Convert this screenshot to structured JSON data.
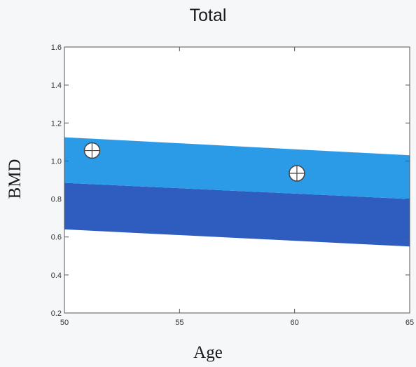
{
  "chart_data": {
    "type": "area",
    "title": "Total",
    "xlabel": "Age",
    "ylabel": "BMD",
    "xlim": [
      50,
      65
    ],
    "ylim": [
      0.2,
      1.6
    ],
    "xticks": [
      50,
      55,
      60,
      65
    ],
    "yticks": [
      0.2,
      0.4,
      0.6,
      0.8,
      1.0,
      1.2,
      1.4,
      1.6
    ],
    "xtick_labels": [
      "50",
      "55",
      "60",
      "65"
    ],
    "ytick_labels": [
      "0.2",
      "0.4",
      "0.6",
      "0.8",
      "1.0",
      "1.2",
      "1.4",
      "1.6"
    ],
    "grid": false,
    "bands": [
      {
        "color": "#2f5dbf",
        "x": [
          50,
          65
        ],
        "lower": [
          0.64,
          0.55
        ],
        "upper": [
          0.885,
          0.8
        ]
      },
      {
        "color": "#2b9be8",
        "x": [
          50,
          65
        ],
        "lower": [
          0.885,
          0.8
        ],
        "upper": [
          1.125,
          1.03
        ]
      }
    ],
    "points": [
      {
        "x": 51.2,
        "y": 1.055
      },
      {
        "x": 60.1,
        "y": 0.935
      }
    ]
  }
}
